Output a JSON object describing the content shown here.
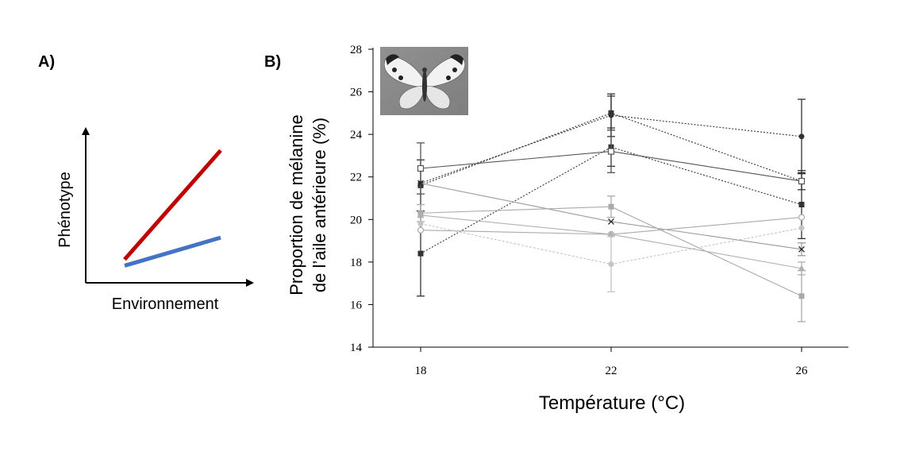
{
  "panel_a": {
    "label": "A)",
    "ylabel": "Phénotype",
    "xlabel": "Environnement",
    "lines": [
      {
        "name": "red-reaction-norm",
        "color": "#c00000",
        "start": 0.15,
        "end": 0.85
      },
      {
        "name": "blue-reaction-norm",
        "color": "#4472c4",
        "start": 0.11,
        "end": 0.29
      }
    ]
  },
  "panel_b": {
    "label": "B)",
    "photo_alt": "butterfly-photo"
  },
  "chart_data": {
    "type": "line",
    "title": "",
    "xlabel": "Température (°C)",
    "ylabel_line1": "Proportion de mélanine",
    "ylabel_line2": "de l’aile antérieure (%)",
    "x": [
      18,
      22,
      26
    ],
    "xticks": [
      "18",
      "22",
      "26"
    ],
    "ylim": [
      14,
      28
    ],
    "yticks": [
      "14",
      "16",
      "18",
      "20",
      "22",
      "24",
      "26",
      "28"
    ],
    "series": [
      {
        "name": "filled-circle",
        "marker": "circle-filled",
        "color": "#333333",
        "dash": "2,2",
        "values": [
          21.7,
          24.9,
          23.9
        ],
        "err": [
          null,
          1.0,
          1.75
        ]
      },
      {
        "name": "filled-square",
        "marker": "square-filled",
        "color": "#333333",
        "dash": "2,2",
        "values": [
          18.4,
          23.4,
          20.7
        ],
        "err": [
          2.0,
          0.9,
          1.6
        ]
      },
      {
        "name": "filled-square-2",
        "marker": "square-filled",
        "color": "#333333",
        "dash": "2,2",
        "values": [
          21.6,
          25.0,
          21.8
        ],
        "err": [
          1.2,
          0.8,
          0.4
        ]
      },
      {
        "name": "open-square",
        "marker": "square-open",
        "color": "#555555",
        "dash": "",
        "values": [
          22.4,
          23.2,
          21.8
        ],
        "err": [
          1.2,
          1.0,
          null
        ]
      },
      {
        "name": "cross-x",
        "marker": "cross",
        "color": "#999999",
        "dash": "",
        "values": [
          21.7,
          19.9,
          18.6
        ],
        "err": [
          null,
          null,
          0.3
        ]
      },
      {
        "name": "open-circle",
        "marker": "circle-open",
        "color": "#aaaaaa",
        "dash": "",
        "values": [
          19.5,
          19.3,
          20.1
        ],
        "err": [
          null,
          null,
          null
        ]
      },
      {
        "name": "grey-square",
        "marker": "square-filled",
        "color": "#aaaaaa",
        "dash": "",
        "values": [
          20.3,
          20.6,
          16.4
        ],
        "err": [
          0.4,
          0.5,
          1.2
        ]
      },
      {
        "name": "grey-triangle",
        "marker": "triangle",
        "color": "#b0b0b0",
        "dash": "",
        "values": [
          20.2,
          19.3,
          17.7
        ],
        "err": [
          null,
          null,
          0.3
        ]
      },
      {
        "name": "grey-circle",
        "marker": "circle-filled",
        "color": "#c4c4c4",
        "dash": "3,2",
        "values": [
          19.8,
          17.9,
          19.6
        ],
        "err": [
          null,
          1.3,
          null
        ]
      }
    ]
  }
}
